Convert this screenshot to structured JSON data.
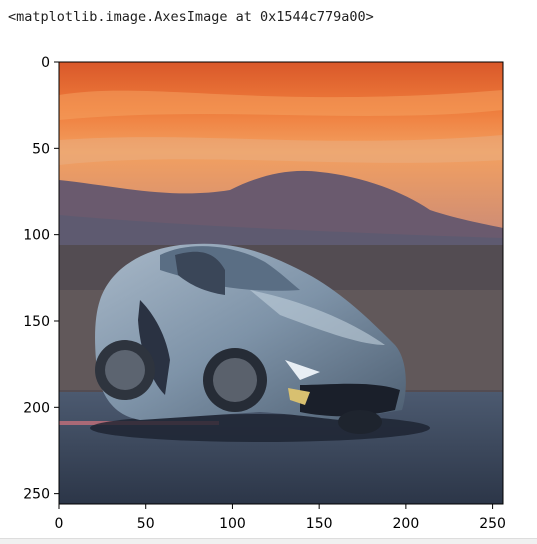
{
  "output": {
    "repr_text": "<matplotlib.image.AxesImage at 0x1544c779a00>"
  },
  "plot": {
    "xlim": [
      0,
      256
    ],
    "ylim": [
      256,
      0
    ],
    "x_ticks": [
      {
        "value": 0,
        "label": "0"
      },
      {
        "value": 50,
        "label": "50"
      },
      {
        "value": 100,
        "label": "100"
      },
      {
        "value": 150,
        "label": "150"
      },
      {
        "value": 200,
        "label": "200"
      },
      {
        "value": 250,
        "label": "250"
      }
    ],
    "y_ticks": [
      {
        "value": 0,
        "label": "0"
      },
      {
        "value": 50,
        "label": "50"
      },
      {
        "value": 100,
        "label": "100"
      },
      {
        "value": 150,
        "label": "150"
      },
      {
        "value": 200,
        "label": "200"
      },
      {
        "value": 250,
        "label": "250"
      }
    ],
    "image_icon": "sports-car-sunset-photo",
    "colors": {
      "sky_top": "#e8632a",
      "sky_mid": "#f28a4a",
      "mountain": "#6a5a6e",
      "road": "#3c4a5e",
      "car_body": "#7e93a8"
    }
  }
}
